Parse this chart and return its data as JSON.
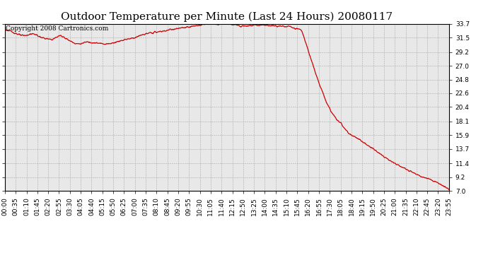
{
  "title": "Outdoor Temperature per Minute (Last 24 Hours) 20080117",
  "copyright_text": "Copyright 2008 Cartronics.com",
  "background_color": "#ffffff",
  "plot_bg_color": "#e8e8e8",
  "line_color": "#cc0000",
  "grid_color": "#aaaaaa",
  "yticks": [
    7.0,
    9.2,
    11.4,
    13.7,
    15.9,
    18.1,
    20.4,
    22.6,
    24.8,
    27.0,
    29.2,
    31.5,
    33.7
  ],
  "ymin": 7.0,
  "ymax": 33.7,
  "xtick_labels": [
    "00:00",
    "00:35",
    "01:10",
    "01:45",
    "02:20",
    "02:55",
    "03:30",
    "04:05",
    "04:40",
    "05:15",
    "05:50",
    "06:25",
    "07:00",
    "07:35",
    "08:10",
    "08:45",
    "09:20",
    "09:55",
    "10:30",
    "11:05",
    "11:40",
    "12:15",
    "12:50",
    "13:25",
    "14:00",
    "14:35",
    "15:10",
    "15:45",
    "16:20",
    "16:55",
    "17:30",
    "18:05",
    "18:40",
    "19:15",
    "19:50",
    "20:25",
    "21:00",
    "21:35",
    "22:10",
    "22:45",
    "23:20",
    "23:55"
  ],
  "title_fontsize": 11,
  "tick_fontsize": 6.5,
  "copyright_fontsize": 6.5,
  "line_width": 0.9
}
